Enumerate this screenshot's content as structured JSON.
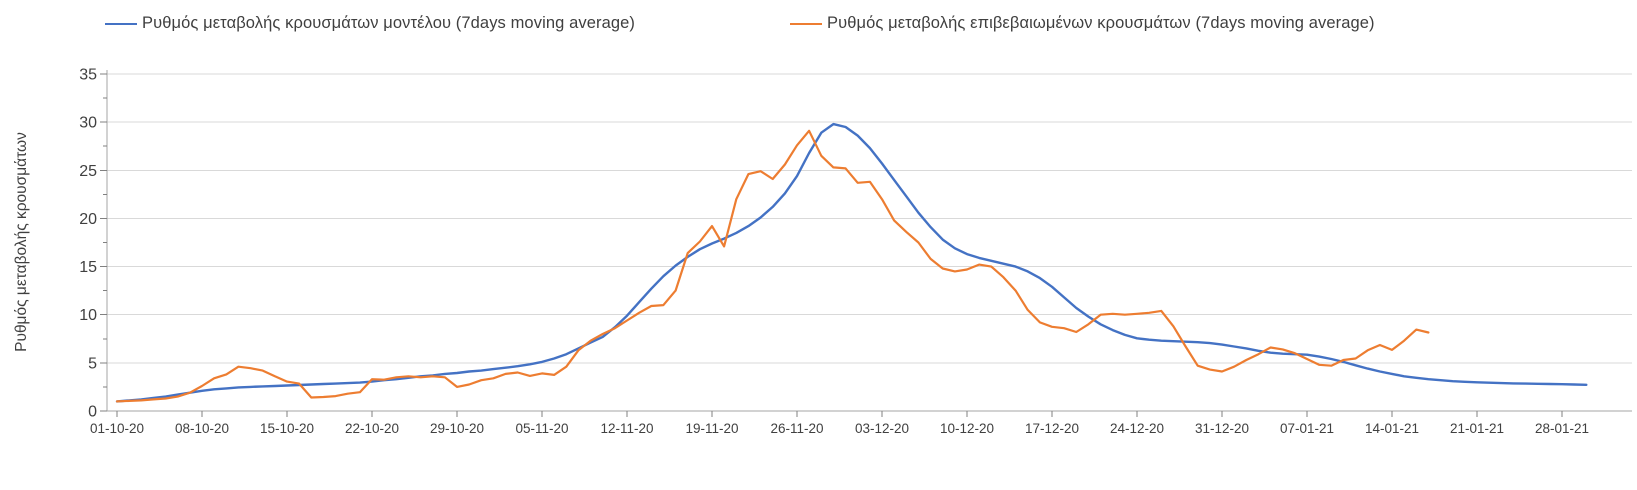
{
  "chart_data": {
    "type": "line",
    "title": "",
    "xlabel": "",
    "ylabel": "Ρυθμός μεταβολής κρουσμάτων",
    "ylim": [
      0,
      35
    ],
    "y_major_ticks": [
      0,
      5,
      10,
      15,
      20,
      25,
      30,
      35
    ],
    "y_minor_tick_step": 2.5,
    "grid": "horizontal",
    "legend_position": "top",
    "x_start_date": "01-10-20",
    "x_tick_interval_days": 7,
    "x_tick_labels": [
      "01-10-20",
      "08-10-20",
      "15-10-20",
      "22-10-20",
      "29-10-20",
      "05-11-20",
      "12-11-20",
      "19-11-20",
      "26-11-20",
      "03-12-20",
      "10-12-20",
      "17-12-20",
      "24-12-20",
      "31-12-20",
      "07-01-21",
      "14-01-21",
      "21-01-21",
      "28-01-21"
    ],
    "series": [
      {
        "name": "Ρυθμός μεταβολής κρουσμάτων μοντέλου (7days moving average)",
        "color": "#4472C4",
        "stroke_width": 2.4,
        "start_day": 0,
        "values": [
          1.0,
          1.1,
          1.2,
          1.35,
          1.5,
          1.7,
          1.9,
          2.1,
          2.25,
          2.35,
          2.45,
          2.5,
          2.55,
          2.6,
          2.65,
          2.7,
          2.75,
          2.8,
          2.85,
          2.9,
          2.95,
          3.05,
          3.2,
          3.3,
          3.45,
          3.6,
          3.7,
          3.85,
          3.95,
          4.1,
          4.2,
          4.35,
          4.5,
          4.65,
          4.85,
          5.1,
          5.45,
          5.9,
          6.5,
          7.1,
          7.7,
          8.7,
          9.9,
          11.3,
          12.7,
          14.0,
          15.1,
          16.0,
          16.8,
          17.4,
          17.9,
          18.5,
          19.2,
          20.1,
          21.2,
          22.6,
          24.4,
          26.8,
          28.9,
          29.8,
          29.5,
          28.6,
          27.3,
          25.7,
          24.0,
          22.3,
          20.6,
          19.1,
          17.8,
          16.9,
          16.3,
          15.9,
          15.6,
          15.3,
          15.0,
          14.5,
          13.8,
          12.9,
          11.8,
          10.7,
          9.8,
          9.0,
          8.4,
          7.9,
          7.55,
          7.4,
          7.3,
          7.25,
          7.2,
          7.15,
          7.05,
          6.9,
          6.7,
          6.5,
          6.25,
          6.05,
          5.95,
          5.9,
          5.85,
          5.65,
          5.4,
          5.1,
          4.75,
          4.4,
          4.1,
          3.85,
          3.6,
          3.45,
          3.3,
          3.2,
          3.1,
          3.03,
          2.98,
          2.94,
          2.9,
          2.87,
          2.85,
          2.83,
          2.8,
          2.78,
          2.75,
          2.72
        ]
      },
      {
        "name": "Ρυθμός μεταβολής επιβεβαιωμένων κρουσμάτων (7days moving average)",
        "color": "#ED7D31",
        "stroke_width": 2.2,
        "start_day": 0,
        "values": [
          1.0,
          1.05,
          1.1,
          1.2,
          1.3,
          1.5,
          1.9,
          2.6,
          3.4,
          3.8,
          4.6,
          4.45,
          4.2,
          3.6,
          3.05,
          2.85,
          1.4,
          1.45,
          1.55,
          1.8,
          1.95,
          3.3,
          3.25,
          3.5,
          3.6,
          3.5,
          3.6,
          3.5,
          2.5,
          2.75,
          3.2,
          3.4,
          3.85,
          4.0,
          3.65,
          3.9,
          3.75,
          4.6,
          6.3,
          7.3,
          8.0,
          8.6,
          9.4,
          10.2,
          10.9,
          11.0,
          12.5,
          16.4,
          17.6,
          19.2,
          17.1,
          22.0,
          24.6,
          24.9,
          24.1,
          25.6,
          27.6,
          29.1,
          26.5,
          25.3,
          25.2,
          23.7,
          23.8,
          22.0,
          19.8,
          18.6,
          17.5,
          15.8,
          14.8,
          14.5,
          14.7,
          15.2,
          15.0,
          13.9,
          12.5,
          10.5,
          9.2,
          8.75,
          8.6,
          8.2,
          9.0,
          10.0,
          10.1,
          10.0,
          10.1,
          10.2,
          10.4,
          8.8,
          6.7,
          4.7,
          4.3,
          4.1,
          4.6,
          5.3,
          5.9,
          6.6,
          6.4,
          6.0,
          5.4,
          4.8,
          4.7,
          5.3,
          5.45,
          6.3,
          6.85,
          6.35,
          7.3,
          8.45,
          8.15
        ]
      }
    ],
    "colors": {
      "grid": "#d9d9d9",
      "axis": "#a6a6a6",
      "tick": "#808080",
      "text": "#404040"
    }
  }
}
